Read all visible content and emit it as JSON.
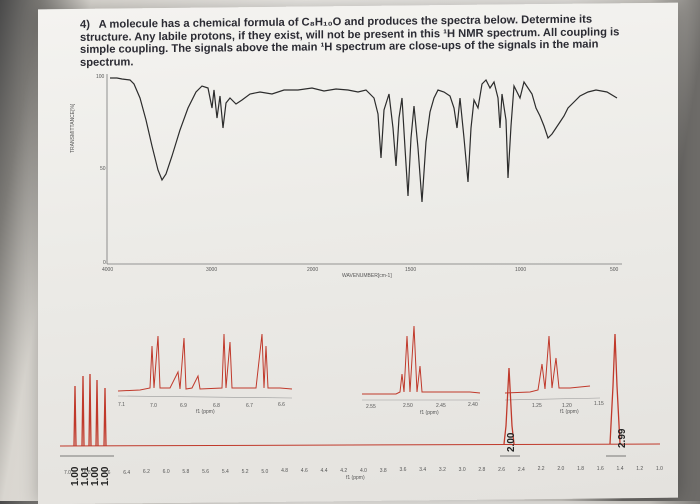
{
  "question": {
    "number": "4)",
    "text": "A molecule has a chemical formula of C₈H₁₀O and produces the spectra below. Determine its structure. Any labile protons, if they exist, will not be present in this ¹H NMR spectrum. All coupling is simple coupling. The signals above the main ¹H spectrum are close-ups of the signals in the main spectrum."
  },
  "ir": {
    "y_label": "TRANSMITTANCE[%]",
    "y_ticks": [
      "100",
      "50",
      "0"
    ],
    "x_label": "WAVENUMBER[cm-1]",
    "x_ticks": [
      "4000",
      "3000",
      "2000",
      "1500",
      "1000",
      "500"
    ]
  },
  "nmr": {
    "insets": [
      {
        "ticks": [
          "7.1",
          "7.0",
          "6.9",
          "6.8",
          "6.7",
          "6.6"
        ],
        "label": "f1 (ppm)"
      },
      {
        "ticks": [
          "2.55",
          "2.50",
          "2.45",
          "2.40"
        ],
        "label": "f1 (ppm)"
      },
      {
        "ticks": [
          "1.25",
          "1.20",
          "1.15"
        ],
        "label": "f1 (ppm)"
      }
    ],
    "x_ticks": [
      "7.0",
      "6.8",
      "6.6",
      "6.4",
      "6.2",
      "6.0",
      "5.8",
      "5.6",
      "5.4",
      "5.2",
      "5.0",
      "4.8",
      "4.6",
      "4.4",
      "4.2",
      "4.0",
      "3.8",
      "3.6",
      "3.4",
      "3.2",
      "3.0",
      "2.8",
      "2.6",
      "2.4",
      "2.2",
      "2.0",
      "1.8",
      "1.6",
      "1.4",
      "1.2",
      "1.0"
    ],
    "x_label": "f1 (ppm)",
    "integrals": [
      "1.00",
      "1.01",
      "1.00",
      "1.00",
      "2.00",
      "2.99"
    ],
    "colors": {
      "peak": "#c0392b",
      "baseline": "#c0392b",
      "integral": "#555555",
      "ir": "#2c2c2c"
    }
  }
}
